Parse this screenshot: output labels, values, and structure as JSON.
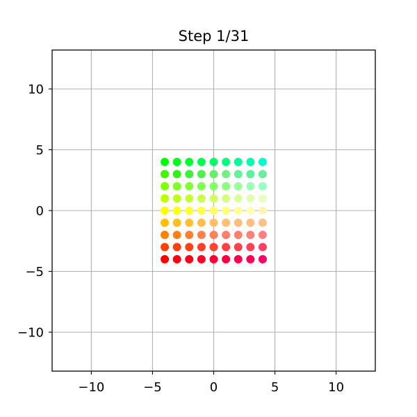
{
  "chart_data": {
    "type": "scatter",
    "title": "Step 1/31",
    "xlabel": "",
    "ylabel": "",
    "xlim": [
      -13.2,
      13.2
    ],
    "ylim": [
      -13.2,
      13.2
    ],
    "grid": true,
    "legend": "none",
    "x_ticks": [
      -10,
      -5,
      0,
      5,
      10
    ],
    "y_ticks": [
      -10,
      -5,
      0,
      5,
      10
    ],
    "x_tick_labels": [
      "−10",
      "−5",
      "0",
      "5",
      "10"
    ],
    "y_tick_labels": [
      "−10",
      "−5",
      "0",
      "5",
      "10"
    ],
    "x": [
      -4,
      -3,
      -2,
      -1,
      0,
      1,
      2,
      3,
      4
    ],
    "y": [
      4,
      3,
      2,
      1,
      0,
      -1,
      -2,
      -3,
      -4
    ],
    "colors": [
      [
        "#00ff00",
        "#00ff1a",
        "#00ff33",
        "#00ff4d",
        "#00ff66",
        "#00ff80",
        "#00ff99",
        "#00ffb3",
        "#00ffcc"
      ],
      [
        "#3ff500",
        "#33f01a",
        "#40f040",
        "#4df04d",
        "#66f066",
        "#73f080",
        "#66f099",
        "#5cf0a3",
        "#66f09e"
      ],
      [
        "#80ff00",
        "#80ff1a",
        "#80ff33",
        "#80ff4d",
        "#80ff66",
        "#8cff80",
        "#99ff99",
        "#99ffb3",
        "#99ffc0"
      ],
      [
        "#bfff00",
        "#bfff1a",
        "#c6ff33",
        "#ccff4d",
        "#d0ff66",
        "#d5ff80",
        "#dcff99",
        "#e0ffb3",
        "#e6ffc0"
      ],
      [
        "#ffff00",
        "#ffff1a",
        "#ffff33",
        "#ffff4d",
        "#ffff66",
        "#ffff80",
        "#ffff99",
        "#ffffb3",
        "#fff5b3"
      ],
      [
        "#ffbf00",
        "#ffbf1a",
        "#ffbf33",
        "#ffbf4d",
        "#ffbf66",
        "#ffbf70",
        "#ffbf7a",
        "#ffbf80",
        "#ffbf88"
      ],
      [
        "#ff8000",
        "#ff801a",
        "#ff8033",
        "#ff804d",
        "#ff8059",
        "#ff8066",
        "#ff8070",
        "#ff8078",
        "#ff8080"
      ],
      [
        "#ff4000",
        "#ff4010",
        "#ff401a",
        "#ff4026",
        "#ff4033",
        "#ff4040",
        "#ff404d",
        "#ff4059",
        "#ff4066"
      ],
      [
        "#ff0000",
        "#ff000d",
        "#ff001a",
        "#ff0026",
        "#ff0033",
        "#ff0040",
        "#ff004d",
        "#ff0059",
        "#ff0066"
      ]
    ]
  }
}
